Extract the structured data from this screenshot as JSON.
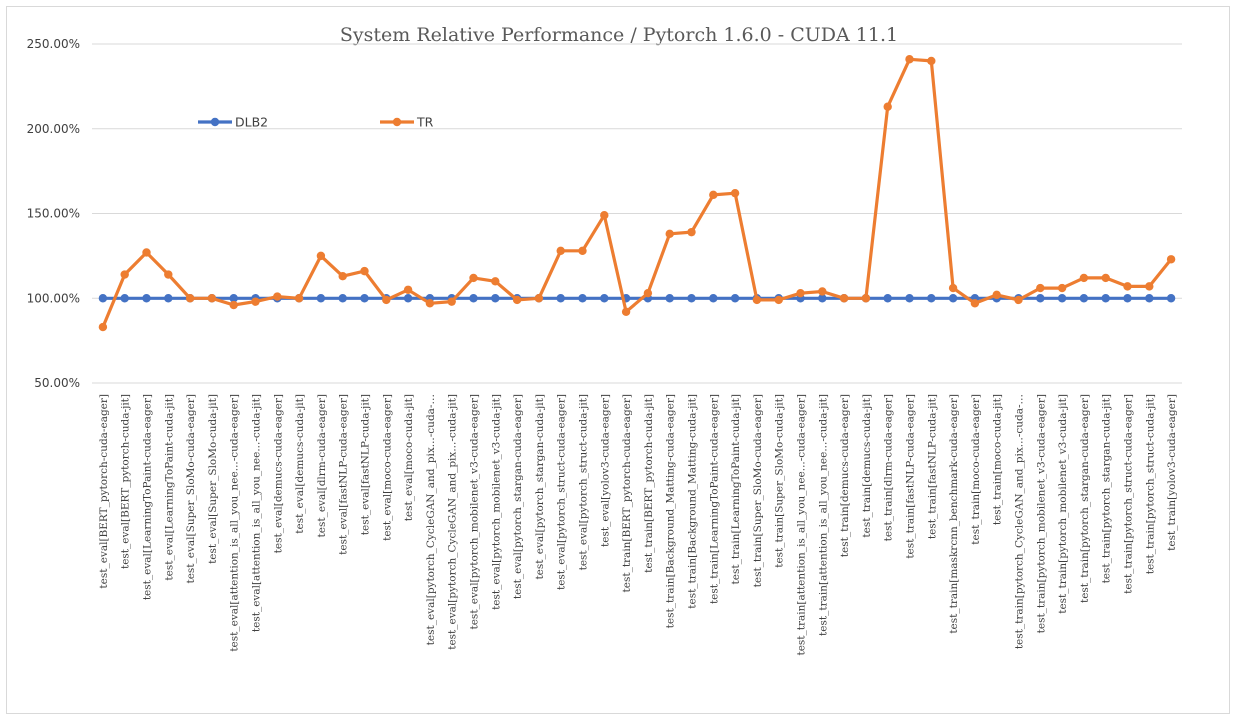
{
  "chart_data": {
    "type": "line",
    "title": "System Relative Performance / Pytorch 1.6.0 - CUDA 11.1",
    "xlabel": "",
    "ylabel": "",
    "ylim": [
      50,
      250
    ],
    "yticks": [
      50,
      100,
      150,
      200,
      250
    ],
    "ytick_labels": [
      "50.00%",
      "100.00%",
      "150.00%",
      "200.00%",
      "250.00%"
    ],
    "grid": true,
    "legend_position": "top-left",
    "categories": [
      "test_eval[BERT_pytorch-cuda-eager]",
      "test_eval[BERT_pytorch-cuda-jit]",
      "test_eval[LearningToPaint-cuda-eager]",
      "test_eval[LearningToPaint-cuda-jit]",
      "test_eval[Super_SloMo-cuda-eager]",
      "test_eval[Super_SloMo-cuda-jit]",
      "test_eval[attention_is_all_you_nee...-cuda-eager]",
      "test_eval[attention_is_all_you_nee...-cuda-jit]",
      "test_eval[demucs-cuda-eager]",
      "test_eval[demucs-cuda-jit]",
      "test_eval[dlrm-cuda-eager]",
      "test_eval[fastNLP-cuda-eager]",
      "test_eval[fastNLP-cuda-jit]",
      "test_eval[moco-cuda-eager]",
      "test_eval[moco-cuda-jit]",
      "test_eval[pytorch_CycleGAN_and_pix...-cuda-…",
      "test_eval[pytorch_CycleGAN_and_pix...-cuda-jit]",
      "test_eval[pytorch_mobilenet_v3-cuda-eager]",
      "test_eval[pytorch_mobilenet_v3-cuda-jit]",
      "test_eval[pytorch_stargan-cuda-eager]",
      "test_eval[pytorch_stargan-cuda-jit]",
      "test_eval[pytorch_struct-cuda-eager]",
      "test_eval[pytorch_struct-cuda-jit]",
      "test_eval[yolov3-cuda-eager]",
      "test_train[BERT_pytorch-cuda-eager]",
      "test_train[BERT_pytorch-cuda-jit]",
      "test_train[Background_Matting-cuda-eager]",
      "test_train[Background_Matting-cuda-jit]",
      "test_train[LearningToPaint-cuda-eager]",
      "test_train[LearningToPaint-cuda-jit]",
      "test_train[Super_SloMo-cuda-eager]",
      "test_train[Super_SloMo-cuda-jit]",
      "test_train[attention_is_all_you_nee...-cuda-eager]",
      "test_train[attention_is_all_you_nee...-cuda-jit]",
      "test_train[demucs-cuda-eager]",
      "test_train[demucs-cuda-jit]",
      "test_train[dlrm-cuda-eager]",
      "test_train[fastNLP-cuda-eager]",
      "test_train[fastNLP-cuda-jit]",
      "test_train[maskrcnn_benchmark-cuda-eager]",
      "test_train[moco-cuda-eager]",
      "test_train[moco-cuda-jit]",
      "test_train[pytorch_CycleGAN_and_pix...-cuda-…",
      "test_train[pytorch_mobilenet_v3-cuda-eager]",
      "test_train[pytorch_mobilenet_v3-cuda-jit]",
      "test_train[pytorch_stargan-cuda-eager]",
      "test_train[pytorch_stargan-cuda-jit]",
      "test_train[pytorch_struct-cuda-eager]",
      "test_train[pytorch_struct-cuda-jit]",
      "test_train[yolov3-cuda-eager]"
    ],
    "series": [
      {
        "name": "DLB2",
        "color": "#4472c4",
        "values": [
          100,
          100,
          100,
          100,
          100,
          100,
          100,
          100,
          100,
          100,
          100,
          100,
          100,
          100,
          100,
          100,
          100,
          100,
          100,
          100,
          100,
          100,
          100,
          100,
          100,
          100,
          100,
          100,
          100,
          100,
          100,
          100,
          100,
          100,
          100,
          100,
          100,
          100,
          100,
          100,
          100,
          100,
          100,
          100,
          100,
          100,
          100,
          100,
          100,
          100
        ]
      },
      {
        "name": "TR",
        "color": "#ed7d31",
        "values": [
          83,
          114,
          127,
          114,
          100,
          100,
          96,
          98,
          101,
          100,
          125,
          113,
          116,
          99,
          105,
          97,
          98,
          112,
          110,
          99,
          100,
          128,
          128,
          149,
          92,
          103,
          138,
          139,
          161,
          162,
          99,
          99,
          103,
          104,
          100,
          100,
          213,
          241,
          240,
          106,
          97,
          102,
          99,
          106,
          106,
          112,
          112,
          107,
          107,
          123
        ]
      }
    ]
  }
}
